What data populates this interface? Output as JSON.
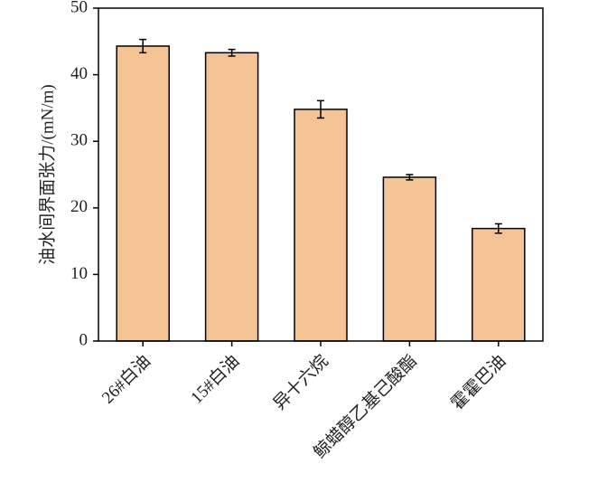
{
  "chart_data": {
    "type": "bar",
    "y_label": "油水间界面张力/(mN/m)",
    "categories": [
      "26#白油",
      "15#白油",
      "异十六烷",
      "鲸蜡醇乙基己酸酯",
      "霍霍巴油"
    ],
    "values": [
      44.3,
      43.3,
      34.8,
      24.6,
      16.9
    ],
    "errors": [
      1.0,
      0.5,
      1.3,
      0.4,
      0.7
    ],
    "color": "#f5c494",
    "ylim": [
      0,
      50
    ],
    "yticks": [
      0,
      10,
      20,
      30,
      40,
      50
    ],
    "grid": false
  }
}
